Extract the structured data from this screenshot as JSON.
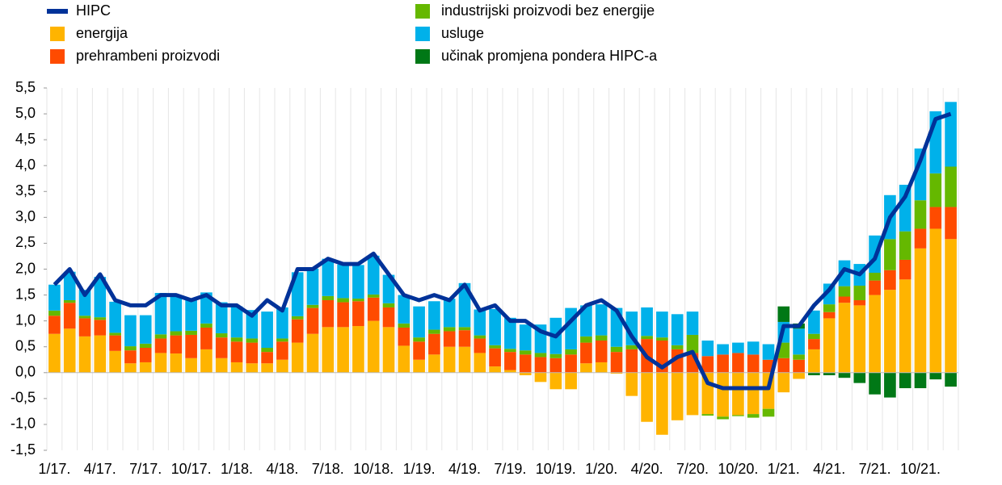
{
  "chart_data": {
    "type": "bar",
    "categories": [
      "1/17.",
      null,
      null,
      "4/17.",
      null,
      null,
      "7/17.",
      null,
      null,
      "10/17.",
      null,
      null,
      "1/18.",
      null,
      null,
      "4/18.",
      null,
      null,
      "7/18.",
      null,
      null,
      "10/18.",
      null,
      null,
      "1/19.",
      null,
      null,
      "4/19.",
      null,
      null,
      "7/19.",
      null,
      null,
      "10/19.",
      null,
      null,
      "1/20.",
      null,
      null,
      "4/20.",
      null,
      null,
      "7/20.",
      null,
      null,
      "10/20.",
      null,
      null,
      "1/21.",
      null,
      null,
      "4/21.",
      null,
      null,
      "7/21.",
      null,
      null,
      "10/21.",
      null,
      null
    ],
    "series": [
      {
        "name": "HIPC",
        "type": "line",
        "color": "#003299",
        "values": [
          1.7,
          2.0,
          1.5,
          1.9,
          1.4,
          1.3,
          1.3,
          1.5,
          1.5,
          1.4,
          1.5,
          1.3,
          1.3,
          1.1,
          1.4,
          1.2,
          2.0,
          2.0,
          2.2,
          2.1,
          2.1,
          2.3,
          1.9,
          1.5,
          1.4,
          1.5,
          1.4,
          1.7,
          1.2,
          1.3,
          1.0,
          1.0,
          0.8,
          0.7,
          1.0,
          1.3,
          1.4,
          1.2,
          0.7,
          0.3,
          0.1,
          0.3,
          0.4,
          -0.2,
          -0.3,
          -0.3,
          -0.3,
          -0.3,
          0.9,
          0.9,
          1.3,
          1.6,
          2.0,
          1.9,
          2.2,
          3.0,
          3.4,
          4.1,
          4.9,
          5.0
        ]
      },
      {
        "name": "energija",
        "type": "bar",
        "color": "#FFB400",
        "values": [
          0.75,
          0.85,
          0.7,
          0.72,
          0.42,
          0.18,
          0.2,
          0.38,
          0.37,
          0.28,
          0.45,
          0.28,
          0.2,
          0.18,
          0.18,
          0.25,
          0.58,
          0.75,
          0.88,
          0.88,
          0.9,
          1.0,
          0.88,
          0.52,
          0.25,
          0.35,
          0.5,
          0.5,
          0.38,
          0.12,
          0.05,
          -0.05,
          -0.18,
          -0.32,
          -0.32,
          0.18,
          0.2,
          -0.02,
          -0.45,
          -0.95,
          -1.2,
          -0.92,
          -0.82,
          -0.8,
          -0.85,
          -0.82,
          -0.8,
          -0.7,
          -0.38,
          -0.12,
          0.45,
          1.05,
          1.35,
          1.3,
          1.5,
          1.6,
          1.8,
          2.4,
          2.78,
          2.58
        ]
      },
      {
        "name": "prehrambeni proizvodi",
        "type": "bar",
        "color": "#FF4B00",
        "values": [
          0.35,
          0.5,
          0.35,
          0.3,
          0.3,
          0.25,
          0.28,
          0.28,
          0.35,
          0.45,
          0.42,
          0.4,
          0.4,
          0.4,
          0.22,
          0.35,
          0.45,
          0.5,
          0.52,
          0.48,
          0.48,
          0.45,
          0.38,
          0.35,
          0.35,
          0.4,
          0.3,
          0.32,
          0.28,
          0.35,
          0.35,
          0.35,
          0.3,
          0.28,
          0.35,
          0.4,
          0.42,
          0.4,
          0.45,
          0.65,
          0.62,
          0.45,
          0.38,
          0.32,
          0.35,
          0.38,
          0.35,
          0.25,
          0.28,
          0.25,
          0.2,
          0.12,
          0.12,
          0.1,
          0.28,
          0.38,
          0.38,
          0.38,
          0.42,
          0.62
        ]
      },
      {
        "name": "industrijski proizvodi bez energije",
        "type": "bar",
        "color": "#65B800",
        "values": [
          0.1,
          0.05,
          0.05,
          0.05,
          0.05,
          0.08,
          0.08,
          0.08,
          0.08,
          0.08,
          0.08,
          0.08,
          0.08,
          0.08,
          0.08,
          0.06,
          0.06,
          0.06,
          0.08,
          0.08,
          0.05,
          0.06,
          0.08,
          0.08,
          0.08,
          0.08,
          0.08,
          0.06,
          0.06,
          0.06,
          0.06,
          0.08,
          0.08,
          0.08,
          0.1,
          0.12,
          0.1,
          0.1,
          0.08,
          0.06,
          0.06,
          0.08,
          0.35,
          -0.03,
          -0.05,
          -0.02,
          -0.07,
          -0.15,
          0.3,
          0.1,
          0.1,
          0.15,
          0.2,
          0.28,
          0.15,
          0.6,
          0.55,
          0.55,
          0.65,
          0.78
        ]
      },
      {
        "name": "usluge",
        "type": "bar",
        "color": "#00B1EA",
        "values": [
          0.5,
          0.55,
          0.5,
          0.78,
          0.6,
          0.6,
          0.55,
          0.8,
          0.7,
          0.6,
          0.6,
          0.6,
          0.6,
          0.55,
          0.7,
          0.6,
          0.85,
          0.7,
          0.72,
          0.65,
          0.65,
          0.75,
          0.55,
          0.55,
          0.6,
          0.55,
          0.55,
          0.85,
          0.5,
          0.7,
          0.6,
          0.5,
          0.55,
          0.7,
          0.8,
          0.6,
          0.6,
          0.75,
          0.65,
          0.55,
          0.5,
          0.6,
          0.45,
          0.3,
          0.2,
          0.2,
          0.25,
          0.3,
          0.4,
          0.5,
          0.45,
          0.4,
          0.5,
          0.42,
          0.72,
          0.85,
          0.9,
          1.0,
          1.2,
          1.25
        ]
      },
      {
        "name": "učinak promjena pondera HIPC-a",
        "type": "bar",
        "color": "#007816",
        "values": [
          null,
          null,
          null,
          null,
          null,
          null,
          null,
          null,
          null,
          null,
          null,
          null,
          null,
          null,
          null,
          null,
          null,
          null,
          null,
          null,
          null,
          null,
          null,
          null,
          null,
          null,
          null,
          null,
          null,
          null,
          null,
          null,
          null,
          null,
          null,
          null,
          null,
          null,
          null,
          null,
          null,
          null,
          null,
          null,
          null,
          null,
          null,
          null,
          0.3,
          0.1,
          -0.05,
          -0.05,
          -0.1,
          -0.2,
          -0.42,
          -0.48,
          -0.3,
          -0.3,
          -0.13,
          -0.27
        ]
      }
    ],
    "ylim": [
      -1.5,
      5.5
    ],
    "yticks": [
      {
        "value": -1.5,
        "label": "-1,5"
      },
      {
        "value": -1,
        "label": "-1,0"
      },
      {
        "value": -0.5,
        "label": "-0,5"
      },
      {
        "value": 0,
        "label": "0,0"
      },
      {
        "value": 0.5,
        "label": "0,5"
      },
      {
        "value": 1,
        "label": "1,0"
      },
      {
        "value": 1.5,
        "label": "1,5"
      },
      {
        "value": 2,
        "label": "2,0"
      },
      {
        "value": 2.5,
        "label": "2,5"
      },
      {
        "value": 3,
        "label": "3,0"
      },
      {
        "value": 3.5,
        "label": "3,5"
      },
      {
        "value": 4,
        "label": "4,0"
      },
      {
        "value": 4.5,
        "label": "4,5"
      },
      {
        "value": 5,
        "label": "5,0"
      },
      {
        "value": 5.5,
        "label": "5,5"
      }
    ]
  }
}
